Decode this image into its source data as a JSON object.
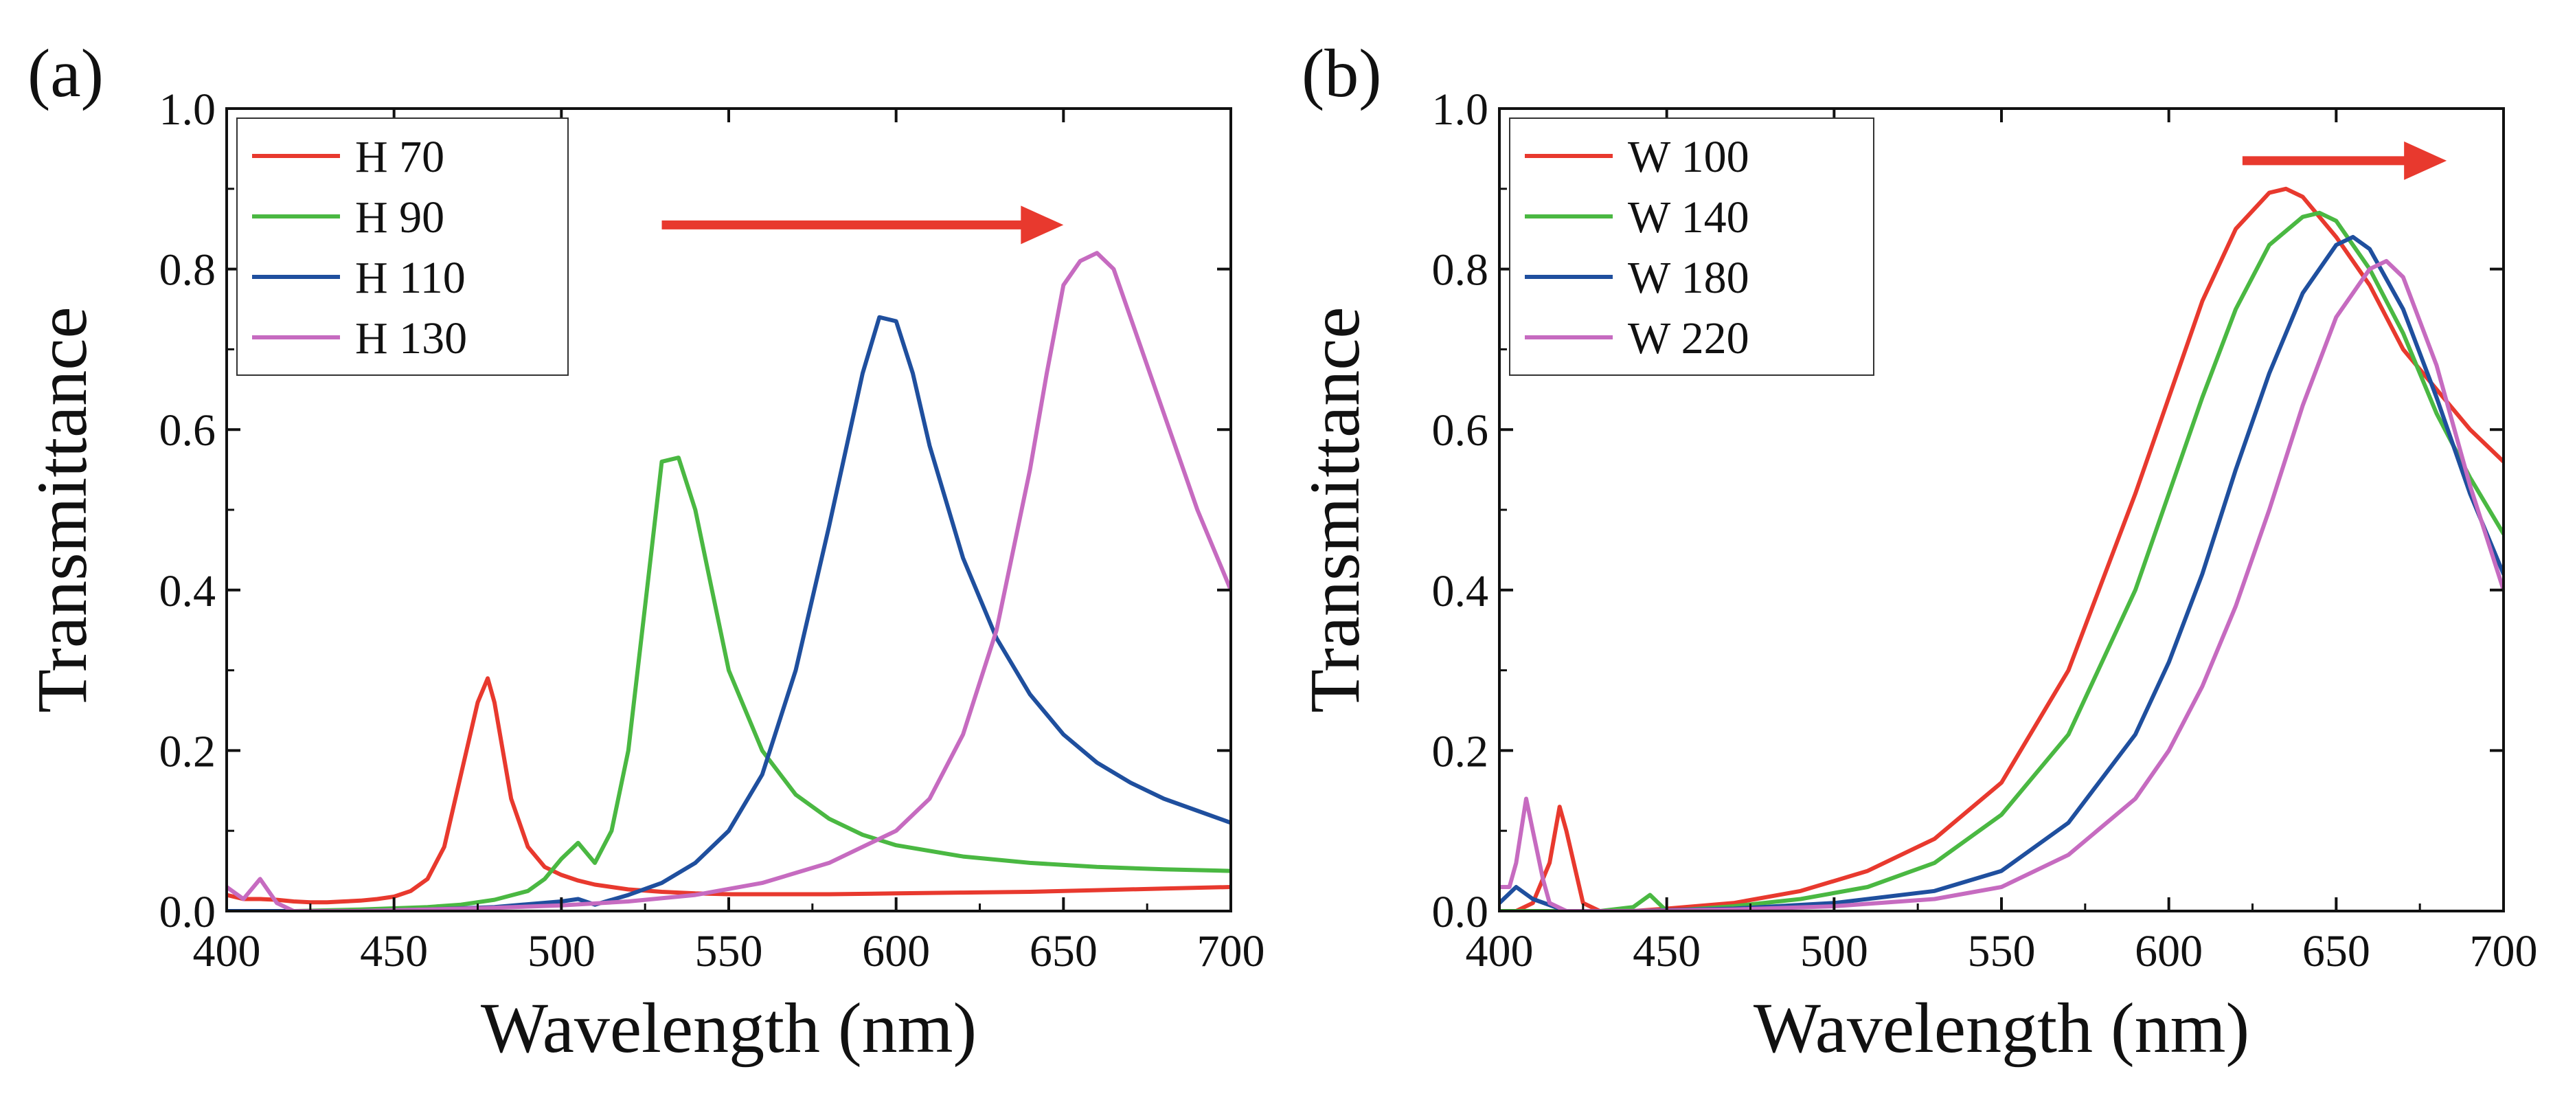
{
  "colors": {
    "red": "#e8392e",
    "green": "#4ab842",
    "blue": "#1f4f9e",
    "magenta": "#c66bc0",
    "arrow": "#e8392e",
    "axis": "#111111"
  },
  "chart_data": [
    {
      "type": "line",
      "panel_label": "(a)",
      "xlabel": "Wavelength (nm)",
      "ylabel": "Transmittance",
      "xlim": [
        400,
        700
      ],
      "ylim": [
        0.0,
        1.0
      ],
      "xticks": [
        400,
        450,
        500,
        550,
        600,
        650,
        700
      ],
      "xtick_labels": [
        "400",
        "450",
        "500",
        "550",
        "600",
        "650",
        "700"
      ],
      "yticks": [
        0.0,
        0.2,
        0.4,
        0.6,
        0.8,
        1.0
      ],
      "ytick_labels": [
        "0.0",
        "0.2",
        "0.4",
        "0.6",
        "0.8",
        "1.0"
      ],
      "legend_position": "top-left",
      "annotation": {
        "type": "arrow",
        "direction": "right",
        "from": [
          530,
          0.855
        ],
        "to": [
          650,
          0.855
        ]
      },
      "series": [
        {
          "name": "H 70",
          "color_key": "red",
          "x": [
            400,
            405,
            410,
            415,
            420,
            425,
            430,
            435,
            440,
            445,
            450,
            455,
            460,
            465,
            470,
            475,
            478,
            480,
            485,
            490,
            495,
            500,
            505,
            510,
            515,
            520,
            530,
            540,
            550,
            560,
            580,
            600,
            620,
            640,
            660,
            680,
            700
          ],
          "y": [
            0.02,
            0.015,
            0.015,
            0.014,
            0.012,
            0.011,
            0.011,
            0.012,
            0.013,
            0.015,
            0.018,
            0.025,
            0.04,
            0.08,
            0.17,
            0.26,
            0.29,
            0.26,
            0.14,
            0.08,
            0.055,
            0.045,
            0.038,
            0.033,
            0.03,
            0.027,
            0.024,
            0.022,
            0.021,
            0.021,
            0.021,
            0.022,
            0.023,
            0.024,
            0.026,
            0.028,
            0.03
          ]
        },
        {
          "name": "H 90",
          "color_key": "green",
          "x": [
            400,
            420,
            440,
            460,
            470,
            480,
            490,
            495,
            500,
            505,
            510,
            515,
            520,
            525,
            530,
            535,
            540,
            545,
            550,
            560,
            570,
            580,
            590,
            600,
            620,
            640,
            660,
            680,
            700
          ],
          "y": [
            0.0,
            0.0,
            0.002,
            0.005,
            0.008,
            0.014,
            0.025,
            0.04,
            0.065,
            0.085,
            0.06,
            0.1,
            0.2,
            0.38,
            0.56,
            0.565,
            0.5,
            0.4,
            0.3,
            0.2,
            0.145,
            0.115,
            0.095,
            0.082,
            0.068,
            0.06,
            0.055,
            0.052,
            0.05
          ]
        },
        {
          "name": "H 110",
          "color_key": "blue",
          "x": [
            400,
            420,
            440,
            460,
            480,
            500,
            505,
            510,
            520,
            530,
            540,
            550,
            560,
            570,
            580,
            590,
            595,
            600,
            605,
            610,
            620,
            630,
            640,
            650,
            660,
            670,
            680,
            690,
            700
          ],
          "y": [
            0.0,
            0.0,
            0.0,
            0.002,
            0.005,
            0.012,
            0.015,
            0.008,
            0.02,
            0.035,
            0.06,
            0.1,
            0.17,
            0.3,
            0.48,
            0.67,
            0.74,
            0.735,
            0.67,
            0.58,
            0.44,
            0.34,
            0.27,
            0.22,
            0.185,
            0.16,
            0.14,
            0.125,
            0.11
          ]
        },
        {
          "name": "H 130",
          "color_key": "magenta",
          "x": [
            400,
            405,
            410,
            415,
            420,
            440,
            460,
            480,
            500,
            520,
            540,
            560,
            580,
            600,
            610,
            620,
            630,
            640,
            645,
            650,
            655,
            660,
            665,
            670,
            680,
            690,
            700
          ],
          "y": [
            0.03,
            0.015,
            0.04,
            0.01,
            0.0,
            0.0,
            0.002,
            0.004,
            0.007,
            0.012,
            0.02,
            0.035,
            0.06,
            0.1,
            0.14,
            0.22,
            0.35,
            0.55,
            0.67,
            0.78,
            0.81,
            0.82,
            0.8,
            0.74,
            0.62,
            0.5,
            0.4
          ]
        }
      ]
    },
    {
      "type": "line",
      "panel_label": "(b)",
      "xlabel": "Wavelength (nm)",
      "ylabel": "Transmittance",
      "xlim": [
        400,
        700
      ],
      "ylim": [
        0.0,
        1.0
      ],
      "xticks": [
        400,
        450,
        500,
        550,
        600,
        650,
        700
      ],
      "xtick_labels": [
        "400",
        "450",
        "500",
        "550",
        "600",
        "650",
        "700"
      ],
      "yticks": [
        0.0,
        0.2,
        0.4,
        0.6,
        0.8,
        1.0
      ],
      "ytick_labels": [
        "0.0",
        "0.2",
        "0.4",
        "0.6",
        "0.8",
        "1.0"
      ],
      "legend_position": "top-left",
      "annotation": {
        "type": "arrow",
        "direction": "right",
        "from": [
          622,
          0.935
        ],
        "to": [
          683,
          0.935
        ]
      },
      "series": [
        {
          "name": "W 100",
          "color_key": "red",
          "x": [
            400,
            405,
            410,
            415,
            418,
            420,
            425,
            430,
            440,
            450,
            470,
            490,
            510,
            530,
            550,
            570,
            590,
            600,
            610,
            620,
            630,
            635,
            640,
            650,
            660,
            670,
            680,
            690,
            700
          ],
          "y": [
            0.0,
            0.0,
            0.01,
            0.06,
            0.13,
            0.1,
            0.01,
            0.0,
            0.0,
            0.003,
            0.01,
            0.025,
            0.05,
            0.09,
            0.16,
            0.3,
            0.52,
            0.64,
            0.76,
            0.85,
            0.895,
            0.9,
            0.89,
            0.84,
            0.78,
            0.7,
            0.65,
            0.6,
            0.56
          ]
        },
        {
          "name": "W 140",
          "color_key": "green",
          "x": [
            400,
            410,
            420,
            430,
            440,
            445,
            450,
            470,
            490,
            510,
            530,
            550,
            570,
            590,
            600,
            610,
            620,
            630,
            640,
            645,
            650,
            660,
            670,
            680,
            690,
            700
          ],
          "y": [
            0.0,
            0.0,
            0.0,
            0.0,
            0.005,
            0.02,
            0.0,
            0.006,
            0.015,
            0.03,
            0.06,
            0.12,
            0.22,
            0.4,
            0.52,
            0.64,
            0.75,
            0.83,
            0.865,
            0.87,
            0.86,
            0.8,
            0.72,
            0.62,
            0.54,
            0.47
          ]
        },
        {
          "name": "W 180",
          "color_key": "blue",
          "x": [
            400,
            405,
            410,
            420,
            440,
            470,
            500,
            530,
            550,
            570,
            590,
            600,
            610,
            620,
            630,
            640,
            650,
            655,
            660,
            670,
            680,
            690,
            700
          ],
          "y": [
            0.01,
            0.03,
            0.015,
            0.0,
            0.0,
            0.003,
            0.01,
            0.025,
            0.05,
            0.11,
            0.22,
            0.31,
            0.42,
            0.55,
            0.67,
            0.77,
            0.83,
            0.84,
            0.825,
            0.75,
            0.64,
            0.52,
            0.42
          ]
        },
        {
          "name": "W 220",
          "color_key": "magenta",
          "x": [
            400,
            403,
            405,
            408,
            410,
            413,
            415,
            420,
            440,
            470,
            500,
            530,
            550,
            570,
            590,
            600,
            610,
            620,
            630,
            640,
            650,
            660,
            665,
            670,
            680,
            690,
            700
          ],
          "y": [
            0.03,
            0.03,
            0.06,
            0.14,
            0.1,
            0.04,
            0.01,
            0.0,
            0.0,
            0.002,
            0.006,
            0.015,
            0.03,
            0.07,
            0.14,
            0.2,
            0.28,
            0.38,
            0.5,
            0.63,
            0.74,
            0.8,
            0.81,
            0.79,
            0.68,
            0.53,
            0.4
          ]
        }
      ]
    }
  ]
}
